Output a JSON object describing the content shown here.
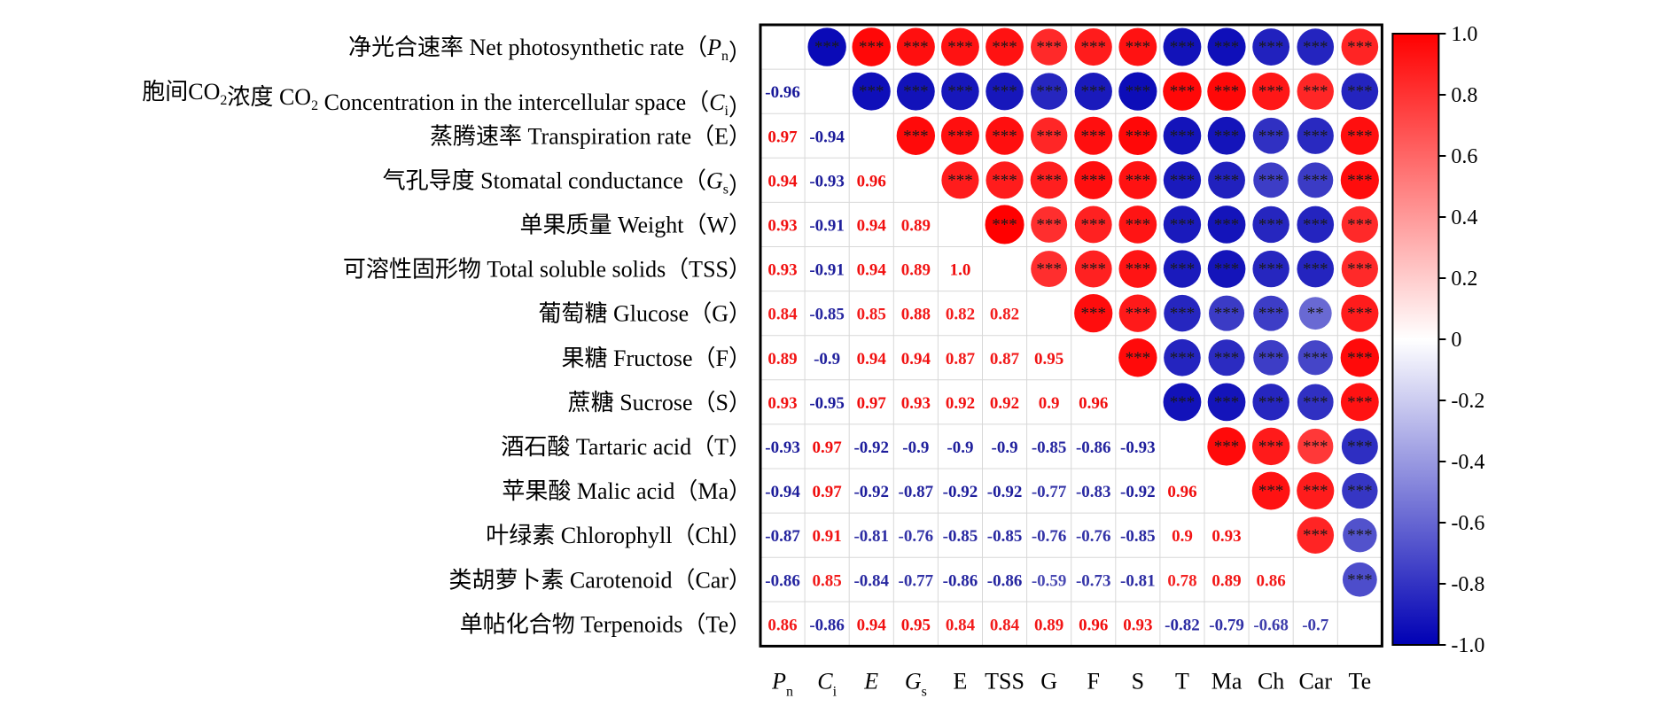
{
  "chart_data": {
    "type": "heatmap",
    "row_labels": [
      "净光合速率 Net photosynthetic rate（Pn）",
      "胞间CO2浓度 CO2 Concentration in the intercellular space（Ci）",
      "蒸腾速率 Transpiration rate（E）",
      "气孔导度 Stomatal conductance（Gs）",
      "单果质量 Weight（W）",
      "可溶性固形物 Total soluble solids（TSS）",
      "葡萄糖 Glucose（G）",
      "果糖 Fructose（F）",
      "蔗糖 Sucrose（S）",
      "酒石酸 Tartaric acid（T）",
      "苹果酸 Malic acid（Ma）",
      "叶绿素 Chlorophyll（Chl）",
      "类胡萝卜素 Carotenoid（Car）",
      "单帖化合物 Terpenoids（Te）"
    ],
    "col_labels": [
      "Pn",
      "Ci",
      "E",
      "Gs",
      "E",
      "TSS",
      "G",
      "F",
      "S",
      "T",
      "Ma",
      "Ch",
      "Car",
      "Te"
    ],
    "lower_values": [
      [],
      [
        -0.96
      ],
      [
        0.97,
        -0.94
      ],
      [
        0.94,
        -0.93,
        0.96
      ],
      [
        0.93,
        -0.91,
        0.94,
        0.89
      ],
      [
        0.93,
        -0.91,
        0.94,
        0.89,
        "1.0"
      ],
      [
        0.84,
        -0.85,
        0.85,
        0.88,
        0.82,
        0.82
      ],
      [
        0.89,
        -0.9,
        0.94,
        0.94,
        0.87,
        0.87,
        0.95
      ],
      [
        0.93,
        -0.95,
        0.97,
        0.93,
        0.92,
        0.92,
        0.9,
        0.96
      ],
      [
        -0.93,
        0.97,
        -0.92,
        -0.9,
        -0.9,
        -0.9,
        -0.85,
        -0.86,
        -0.93
      ],
      [
        -0.94,
        0.97,
        -0.92,
        -0.87,
        -0.92,
        -0.92,
        -0.77,
        -0.83,
        -0.92,
        0.96
      ],
      [
        -0.87,
        0.91,
        -0.81,
        -0.76,
        -0.85,
        -0.85,
        -0.76,
        -0.76,
        -0.85,
        0.9,
        0.93
      ],
      [
        -0.86,
        0.85,
        -0.84,
        -0.77,
        -0.86,
        -0.86,
        -0.59,
        -0.73,
        -0.81,
        0.78,
        0.89,
        0.86
      ],
      [
        0.86,
        -0.86,
        0.94,
        0.95,
        0.84,
        0.84,
        0.89,
        0.96,
        0.93,
        -0.82,
        -0.79,
        -0.68,
        -0.7
      ]
    ],
    "upper_stars": [
      [
        "***",
        "***",
        "***",
        "***",
        "***",
        "***",
        "***",
        "***",
        "***",
        "***",
        "***",
        "***",
        "***"
      ],
      [
        "***",
        "***",
        "***",
        "***",
        "***",
        "***",
        "***",
        "***",
        "***",
        "***",
        "***",
        "***"
      ],
      [
        "***",
        "***",
        "***",
        "***",
        "***",
        "***",
        "***",
        "***",
        "***",
        "***",
        "***"
      ],
      [
        "***",
        "***",
        "***",
        "***",
        "***",
        "***",
        "***",
        "***",
        "***",
        "***"
      ],
      [
        "***",
        "***",
        "***",
        "***",
        "***",
        "***",
        "***",
        "***",
        "***"
      ],
      [
        "***",
        "***",
        "***",
        "***",
        "***",
        "***",
        "***",
        "***"
      ],
      [
        "***",
        "***",
        "***",
        "***",
        "***",
        "**",
        "***"
      ],
      [
        "***",
        "***",
        "***",
        "***",
        "***",
        "***"
      ],
      [
        "***",
        "***",
        "***",
        "***",
        "***"
      ],
      [
        "***",
        "***",
        "***",
        "***"
      ],
      [
        "***",
        "***",
        "***"
      ],
      [
        "***",
        "***"
      ],
      [
        "***"
      ],
      []
    ],
    "colorbar": {
      "ticks": [
        "1.0",
        "0.8",
        "0.6",
        "0.4",
        "0.2",
        "0",
        "-0.2",
        "-0.4",
        "-0.6",
        "-0.8",
        "-1.0"
      ],
      "range": [
        -1,
        1
      ],
      "colors": {
        "positive": "#ff0000",
        "neutral": "#ffffff",
        "negative": "#0000b4"
      }
    }
  }
}
